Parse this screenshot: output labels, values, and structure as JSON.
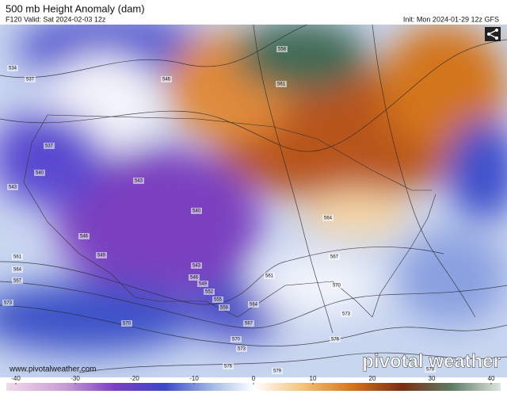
{
  "header": {
    "title": "500 mb Height Anomaly (dam)",
    "valid": "F120 Valid: Sat 2024-02-03 12z",
    "init": "Init: Mon 2024-01-29 12z GFS"
  },
  "website": "www.pivotalweather.com",
  "watermark": "pivotal weather",
  "colorbar": {
    "ticks": [
      -40,
      -30,
      -20,
      -10,
      0,
      10,
      20,
      30,
      40
    ]
  },
  "contour_labels": [
    534,
    537,
    546,
    558,
    561,
    537,
    540,
    543,
    543,
    540,
    546,
    549,
    561,
    564,
    567,
    573,
    543,
    546,
    549,
    552,
    555,
    558,
    561,
    564,
    567,
    570,
    570,
    573,
    576,
    579,
    564,
    567,
    570,
    573,
    576,
    579
  ]
}
